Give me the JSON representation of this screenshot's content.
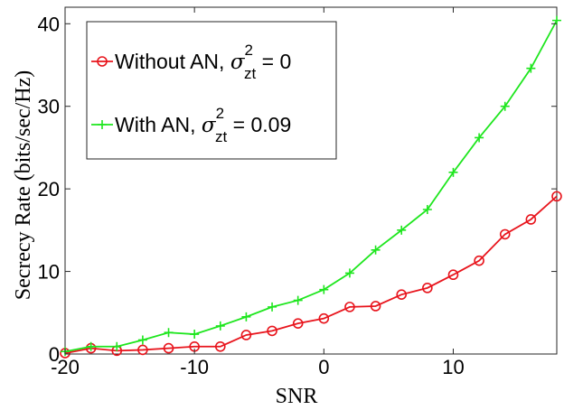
{
  "chart_data": {
    "type": "line",
    "title": "",
    "xlabel": "SNR",
    "ylabel": "Secrecy Rate (bits/sec/Hz)",
    "xlim": [
      -20,
      18
    ],
    "ylim": [
      0,
      42
    ],
    "xticks": [
      -20,
      -10,
      0,
      10
    ],
    "yticks": [
      0,
      10,
      20,
      30,
      40
    ],
    "grid": false,
    "legend_position": "top-left",
    "x": [
      -20,
      -18,
      -16,
      -14,
      -12,
      -10,
      -8,
      -6,
      -4,
      -2,
      0,
      2,
      4,
      6,
      8,
      10,
      12,
      14,
      16,
      18
    ],
    "series": [
      {
        "name": "Without AN, σ_zt^2 = 0",
        "legend_main": "Without AN, ",
        "legend_symbol": "σ",
        "legend_sup": "2",
        "legend_sub": "zt",
        "legend_tail": " = 0",
        "color": "#e8141c",
        "marker": "circle",
        "values": [
          0.1,
          0.7,
          0.4,
          0.5,
          0.7,
          0.9,
          0.9,
          2.3,
          2.8,
          3.7,
          4.3,
          5.7,
          5.8,
          7.2,
          8.0,
          9.6,
          11.3,
          14.5,
          16.3,
          19.1
        ]
      },
      {
        "name": "With AN, σ_zt^2 = 0.09",
        "legend_main": "With AN, ",
        "legend_symbol": "σ",
        "legend_sup": "2",
        "legend_sub": "zt",
        "legend_tail": " = 0.09",
        "color": "#1ee61e",
        "marker": "plus",
        "values": [
          0.3,
          0.9,
          0.9,
          1.7,
          2.6,
          2.4,
          3.4,
          4.5,
          5.7,
          6.5,
          7.8,
          9.8,
          12.6,
          15.0,
          17.5,
          22.0,
          26.2,
          30.0,
          34.6,
          40.4
        ]
      }
    ]
  }
}
